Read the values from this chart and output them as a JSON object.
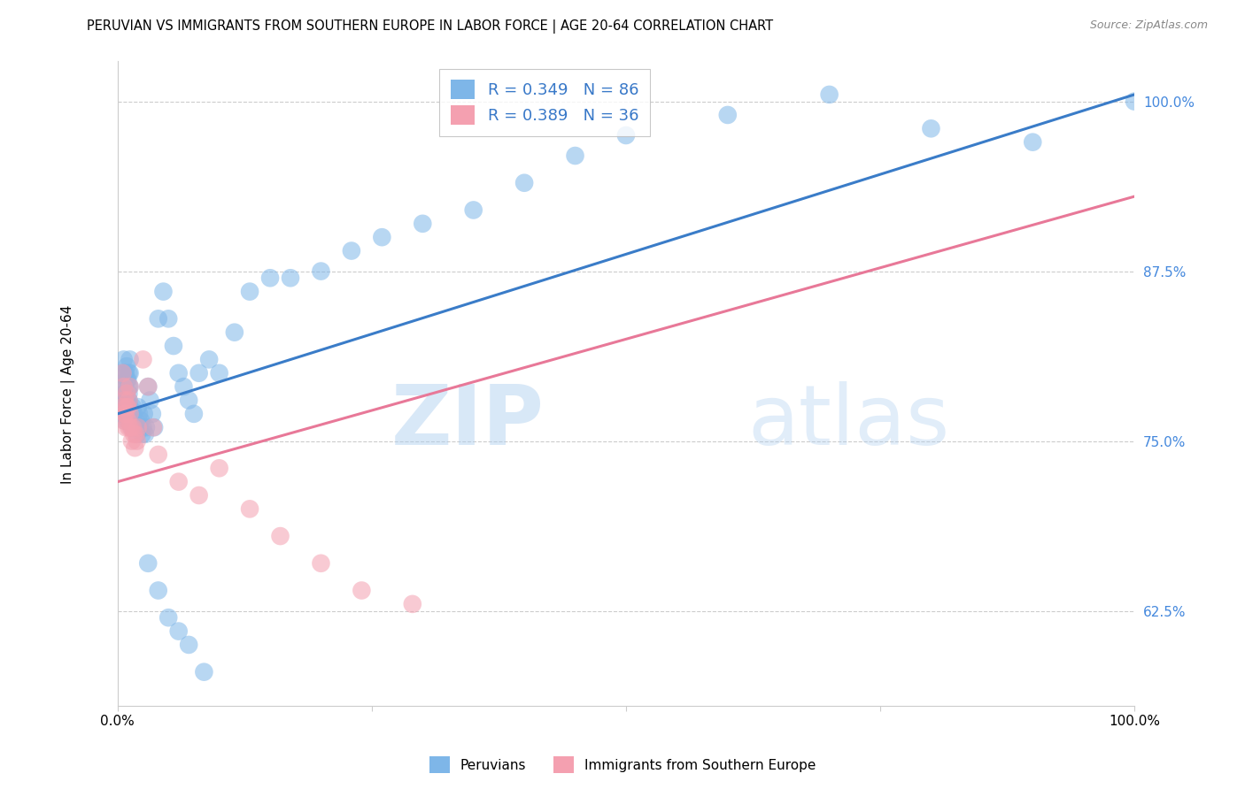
{
  "title": "PERUVIAN VS IMMIGRANTS FROM SOUTHERN EUROPE IN LABOR FORCE | AGE 20-64 CORRELATION CHART",
  "source": "Source: ZipAtlas.com",
  "ylabel": "In Labor Force | Age 20-64",
  "xlim": [
    0.0,
    1.0
  ],
  "ylim": [
    0.555,
    1.03
  ],
  "xticks": [
    0.0,
    0.25,
    0.5,
    0.75,
    1.0
  ],
  "xtick_labels": [
    "0.0%",
    "",
    "",
    "",
    "100.0%"
  ],
  "yticks": [
    0.625,
    0.75,
    0.875,
    1.0
  ],
  "ytick_labels": [
    "62.5%",
    "75.0%",
    "87.5%",
    "100.0%"
  ],
  "blue_R": 0.349,
  "blue_N": 86,
  "pink_R": 0.389,
  "pink_N": 36,
  "blue_color": "#7EB6E8",
  "pink_color": "#F4A0B0",
  "blue_line_color": "#3A7CC8",
  "pink_line_color": "#E87898",
  "blue_line_x0": 0.0,
  "blue_line_y0": 0.77,
  "blue_line_x1": 1.0,
  "blue_line_y1": 1.005,
  "pink_line_x0": 0.0,
  "pink_line_y0": 0.72,
  "pink_line_x1": 1.0,
  "pink_line_y1": 0.93,
  "legend_label_blue": "R = 0.349   N = 86",
  "legend_label_pink": "R = 0.389   N = 36",
  "bottom_legend_blue": "Peruvians",
  "bottom_legend_pink": "Immigrants from Southern Europe",
  "watermark_zip": "ZIP",
  "watermark_atlas": "atlas",
  "background_color": "#FFFFFF",
  "title_fontsize": 10.5,
  "axis_label_fontsize": 11,
  "tick_fontsize": 11,
  "blue_x": [
    0.005,
    0.006,
    0.007,
    0.008,
    0.009,
    0.01,
    0.011,
    0.012,
    0.005,
    0.006,
    0.007,
    0.008,
    0.009,
    0.01,
    0.011,
    0.012,
    0.005,
    0.006,
    0.007,
    0.008,
    0.009,
    0.01,
    0.011,
    0.012,
    0.005,
    0.006,
    0.007,
    0.008,
    0.009,
    0.01,
    0.011,
    0.012,
    0.013,
    0.014,
    0.015,
    0.016,
    0.017,
    0.018,
    0.019,
    0.02,
    0.021,
    0.022,
    0.023,
    0.024,
    0.025,
    0.026,
    0.027,
    0.028,
    0.03,
    0.032,
    0.034,
    0.036,
    0.04,
    0.045,
    0.05,
    0.055,
    0.06,
    0.065,
    0.07,
    0.075,
    0.08,
    0.09,
    0.1,
    0.115,
    0.13,
    0.15,
    0.17,
    0.2,
    0.23,
    0.26,
    0.3,
    0.35,
    0.4,
    0.45,
    0.5,
    0.6,
    0.7,
    0.8,
    0.9,
    1.0,
    0.03,
    0.04,
    0.05,
    0.06,
    0.07,
    0.085
  ],
  "blue_y": [
    0.8,
    0.81,
    0.79,
    0.8,
    0.805,
    0.795,
    0.8,
    0.81,
    0.79,
    0.78,
    0.8,
    0.785,
    0.795,
    0.78,
    0.79,
    0.8,
    0.775,
    0.785,
    0.77,
    0.78,
    0.775,
    0.77,
    0.785,
    0.79,
    0.77,
    0.78,
    0.765,
    0.775,
    0.77,
    0.765,
    0.78,
    0.775,
    0.765,
    0.76,
    0.775,
    0.77,
    0.76,
    0.765,
    0.755,
    0.775,
    0.77,
    0.76,
    0.765,
    0.755,
    0.76,
    0.77,
    0.755,
    0.76,
    0.79,
    0.78,
    0.77,
    0.76,
    0.84,
    0.86,
    0.84,
    0.82,
    0.8,
    0.79,
    0.78,
    0.77,
    0.8,
    0.81,
    0.8,
    0.83,
    0.86,
    0.87,
    0.87,
    0.875,
    0.89,
    0.9,
    0.91,
    0.92,
    0.94,
    0.96,
    0.975,
    0.99,
    1.005,
    0.98,
    0.97,
    1.0,
    0.66,
    0.64,
    0.62,
    0.61,
    0.6,
    0.58
  ],
  "pink_x": [
    0.005,
    0.006,
    0.007,
    0.008,
    0.009,
    0.01,
    0.011,
    0.012,
    0.005,
    0.006,
    0.007,
    0.008,
    0.009,
    0.01,
    0.011,
    0.012,
    0.013,
    0.014,
    0.015,
    0.016,
    0.017,
    0.018,
    0.019,
    0.02,
    0.025,
    0.03,
    0.035,
    0.04,
    0.06,
    0.08,
    0.1,
    0.13,
    0.16,
    0.2,
    0.24,
    0.29
  ],
  "pink_y": [
    0.8,
    0.79,
    0.78,
    0.77,
    0.785,
    0.775,
    0.78,
    0.79,
    0.775,
    0.765,
    0.77,
    0.76,
    0.775,
    0.765,
    0.76,
    0.77,
    0.76,
    0.75,
    0.76,
    0.755,
    0.745,
    0.755,
    0.75,
    0.76,
    0.81,
    0.79,
    0.76,
    0.74,
    0.72,
    0.71,
    0.73,
    0.7,
    0.68,
    0.66,
    0.64,
    0.63
  ]
}
